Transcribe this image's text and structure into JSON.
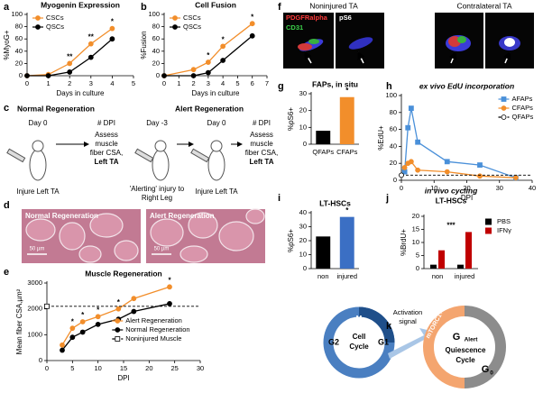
{
  "chart_data": [
    {
      "panel": "a",
      "type": "line",
      "title": "Myogenin Expression",
      "xlabel": "Days in culture",
      "ylabel": "%MyoG+",
      "xlim": [
        0,
        5
      ],
      "xticks": [
        0,
        1,
        2,
        3,
        4,
        5
      ],
      "ylim": [
        0,
        100
      ],
      "yticks": [
        0,
        20,
        40,
        60,
        80,
        100
      ],
      "legend": "upper left",
      "series": [
        {
          "name": "CSCs",
          "color": "#f28e2b",
          "marker": "circle",
          "x": [
            0,
            1,
            2,
            3,
            4
          ],
          "values": [
            0,
            2,
            20,
            52,
            77
          ]
        },
        {
          "name": "QSCs",
          "color": "#000000",
          "marker": "circle",
          "x": [
            0,
            1,
            2,
            3,
            4
          ],
          "values": [
            0,
            0,
            6,
            30,
            60
          ]
        }
      ],
      "annotations": [
        {
          "text": "**",
          "x": 2
        },
        {
          "text": "**",
          "x": 3
        },
        {
          "text": "*",
          "x": 4
        }
      ]
    },
    {
      "panel": "b",
      "type": "line",
      "title": "Cell Fusion",
      "xlabel": "Days in culture",
      "ylabel": "%Fusion",
      "xlim": [
        0,
        7
      ],
      "xticks": [
        0,
        1,
        2,
        3,
        4,
        5,
        6,
        7
      ],
      "ylim": [
        0,
        100
      ],
      "yticks": [
        0,
        20,
        40,
        60,
        80,
        100
      ],
      "legend": "upper left",
      "series": [
        {
          "name": "CSCs",
          "color": "#f28e2b",
          "marker": "circle",
          "x": [
            0,
            2,
            3,
            4,
            6
          ],
          "values": [
            0,
            10,
            22,
            48,
            85
          ]
        },
        {
          "name": "QSCs",
          "color": "#000000",
          "marker": "circle",
          "x": [
            0,
            2,
            3,
            4,
            6
          ],
          "values": [
            0,
            0,
            5,
            25,
            65
          ]
        }
      ],
      "annotations": [
        {
          "text": "*",
          "x": 3
        },
        {
          "text": "*",
          "x": 4
        },
        {
          "text": "*",
          "x": 6
        }
      ]
    },
    {
      "panel": "e",
      "type": "line",
      "title": "Muscle Regeneration",
      "xlabel": "DPI",
      "ylabel": "Mean fiber CSA,µm²",
      "xlim": [
        0,
        30
      ],
      "xticks": [
        0,
        5,
        10,
        15,
        20,
        25,
        30
      ],
      "ylim": [
        0,
        3000
      ],
      "yticks": [
        0,
        1000,
        2000,
        3000
      ],
      "legend": "lower right",
      "series": [
        {
          "name": "Alert Regeneration",
          "color": "#f28e2b",
          "marker": "circle",
          "x": [
            3,
            5,
            7,
            10,
            14,
            17,
            24
          ],
          "values": [
            600,
            1250,
            1500,
            1700,
            2000,
            2400,
            2850
          ]
        },
        {
          "name": "Normal Regeneration",
          "color": "#000000",
          "marker": "circle",
          "x": [
            3,
            5,
            7,
            10,
            14,
            17,
            24
          ],
          "values": [
            400,
            900,
            1100,
            1400,
            1600,
            1900,
            2200
          ]
        },
        {
          "name": "Noninjured Muscle",
          "color": "#000000",
          "marker": "open-square",
          "dashed": true,
          "x": [
            0
          ],
          "values": [
            2100
          ]
        }
      ],
      "annotations": [
        {
          "text": "*",
          "x": 5
        },
        {
          "text": "*",
          "x": 7
        },
        {
          "text": "*",
          "x": 10
        },
        {
          "text": "*",
          "x": 14
        },
        {
          "text": "*",
          "x": 24
        }
      ]
    },
    {
      "panel": "g",
      "type": "bar",
      "title": "FAPs, in situ",
      "ylabel": "%pS6+",
      "ylim": [
        0,
        30
      ],
      "yticks": [
        0,
        10,
        20,
        30
      ],
      "categories": [
        "QFAPs",
        "CFAPs"
      ],
      "values": [
        8,
        28
      ],
      "colors": [
        "#000000",
        "#f28e2b"
      ],
      "annotations": [
        {
          "text": "*",
          "x": 1
        }
      ]
    },
    {
      "panel": "h",
      "type": "line",
      "title": "ex vivo EdU incorporation",
      "xlabel": "DPI",
      "ylabel": "%EdU+",
      "xlim": [
        0,
        40
      ],
      "xticks": [
        0,
        10,
        20,
        30,
        40
      ],
      "ylim": [
        0,
        100
      ],
      "yticks": [
        0,
        20,
        40,
        60,
        80,
        100
      ],
      "legend": "upper right",
      "series": [
        {
          "name": "AFAPs",
          "color": "#4a90d9",
          "marker": "square",
          "x": [
            1,
            2,
            3,
            5,
            14,
            24,
            35
          ],
          "values": [
            10,
            62,
            85,
            45,
            22,
            18,
            3
          ]
        },
        {
          "name": "CFAPs",
          "color": "#f28e2b",
          "marker": "circle",
          "x": [
            1,
            2,
            3,
            5,
            14,
            24,
            35
          ],
          "values": [
            15,
            20,
            22,
            12,
            10,
            5,
            3
          ]
        },
        {
          "name": "QFAPs",
          "color": "#000000",
          "marker": "open-circle",
          "dashed": true,
          "x": [
            0
          ],
          "values": [
            6
          ]
        }
      ]
    },
    {
      "panel": "i",
      "type": "bar",
      "title": "LT-HSCs",
      "ylabel": "%pS6+",
      "ylim": [
        0,
        40
      ],
      "yticks": [
        0,
        10,
        20,
        30,
        40
      ],
      "categories": [
        "non",
        "injured"
      ],
      "values": [
        23,
        37
      ],
      "colors": [
        "#000000",
        "#3b6fc4"
      ],
      "annotations": [
        {
          "text": "*",
          "x": 1
        }
      ]
    },
    {
      "panel": "j",
      "type": "bar",
      "title": "in vivo cycling",
      "subtitle": "LT-HSCs",
      "ylabel": "%BrdU+",
      "ylim": [
        0,
        20
      ],
      "yticks": [
        0,
        5,
        10,
        15,
        20
      ],
      "categories": [
        "non",
        "injured"
      ],
      "legend": "right",
      "series": [
        {
          "name": "PBS",
          "color": "#000000",
          "values": [
            1.5,
            1.5
          ]
        },
        {
          "name": "IFNγ",
          "color": "#c00000",
          "values": [
            7,
            14
          ]
        }
      ],
      "annotations": [
        {
          "text": "***",
          "x": 0.5
        }
      ]
    }
  ],
  "panel_c": {
    "letter": "c",
    "labels": [
      "Normal Regeneration",
      "Day 0",
      "# DPI",
      "Assess",
      "muscle",
      "fiber CSA,",
      "Left TA",
      "Injure Left TA",
      "Alert Regeneration",
      "Day -3",
      "'Alerting' injury to",
      "Right Leg",
      "Day 0",
      "Injure Left TA",
      "# DPI",
      "Assess",
      "muscle",
      "fiber CSA,",
      "Left TA"
    ]
  },
  "panel_d": {
    "letter": "d",
    "labels": [
      "Normal Regeneration",
      "Alert Regeneration",
      "50 µm",
      "50 µm"
    ]
  },
  "panel_f": {
    "letter": "f",
    "labels": [
      "Noninjured TA",
      "Contralateral TA",
      "PDGFRalpha",
      "CD31",
      "pS6"
    ]
  },
  "panel_k": {
    "letter": "k",
    "labels": [
      "M",
      "G2",
      "Cell",
      "Cycle",
      "G1",
      "S",
      "Activation",
      "signal",
      "mTORC1+",
      "G",
      "Alert",
      "Quiescence",
      "Cycle",
      "G",
      "0",
      "mTORC1-"
    ]
  }
}
